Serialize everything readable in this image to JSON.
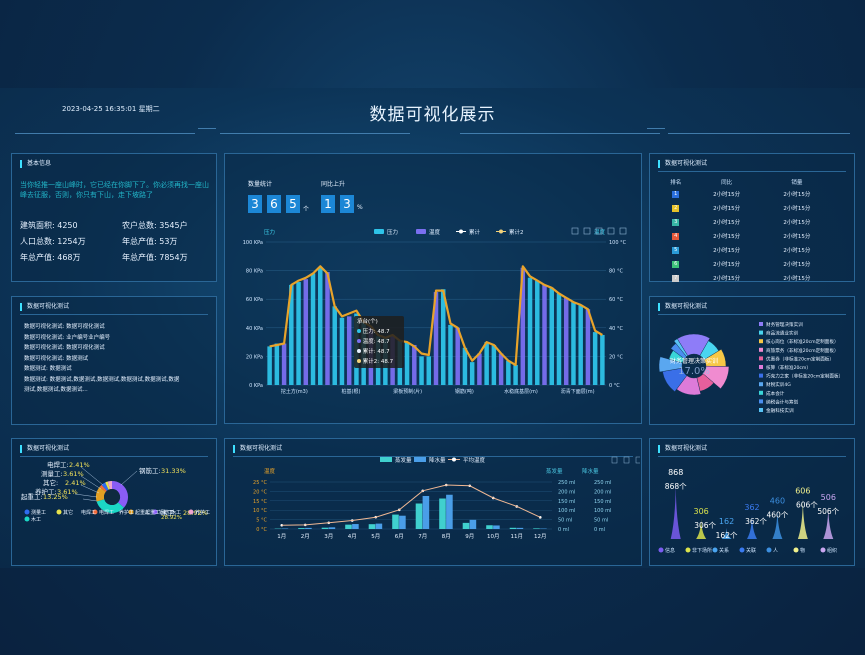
{
  "header": {
    "title": "数据可视化展示",
    "datetime": "2023-04-25  16:35:01  星期二"
  },
  "basic_info": {
    "title": "基本信息",
    "text": "当你轻推一座山峰时，它已经在你脚下了。你必须再找一座山峰去征服，否则，你只有下山，走下坡路了",
    "stats": [
      {
        "label": "建筑面积:",
        "value": "4250"
      },
      {
        "label": "农户总数:",
        "value": "3545户"
      },
      {
        "label": "人口总数:",
        "value": "1254万"
      },
      {
        "label": "年总产值:",
        "value": "53万"
      },
      {
        "label": "年总产值:",
        "value": "468万"
      },
      {
        "label": "年总产值:",
        "value": "7854万"
      }
    ]
  },
  "text_panel": {
    "title": "数据可视化测试",
    "lines": [
      "数据可视化测试: 数据可视化测试",
      "数据可视化测试: 业户编号业户编号",
      "数据可视化测试: 数据可视化测试",
      "数据可视化测试: 数据测试",
      "数据测试: 数据测试",
      "数据测试: 数据测试,数据测试,数据测试,数据测试,数据测试,数据",
      "测试,数据测试,数据测试..."
    ]
  },
  "left_bottom_panel": {
    "title": "数据可视化测试"
  },
  "center_top": {
    "count_label": "数量统计",
    "count_digits": [
      "3",
      "6",
      "5"
    ],
    "count_unit": "个",
    "rise_label": "同比上升",
    "rise_digits": [
      "1",
      "3"
    ],
    "rise_unit": "%"
  },
  "tooltip": {
    "title": "承台(个)",
    "rows": [
      "压力: 48.7",
      "温度: 48.7",
      "累计: 48.7",
      "累计2: 48.7"
    ]
  },
  "ranking": {
    "title": "数据可视化测试",
    "headers": [
      "排名",
      "同比",
      "销量"
    ],
    "rows": [
      {
        "rank": "1",
        "a": "2小时15分",
        "b": "2小时15分"
      },
      {
        "rank": "2",
        "a": "2小时15分",
        "b": "2小时15分"
      },
      {
        "rank": "3",
        "a": "2小时15分",
        "b": "2小时15分"
      },
      {
        "rank": "4",
        "a": "2小时15分",
        "b": "2小时15分"
      },
      {
        "rank": "5",
        "a": "2小时15分",
        "b": "2小时15分"
      },
      {
        "rank": "6",
        "a": "2小时15分",
        "b": "2小时15分"
      },
      {
        "rank": "7",
        "a": "2小时15分",
        "b": "2小时15分"
      }
    ],
    "rank_colors": [
      "#2a6fdc",
      "#e6c229",
      "#37b7a6",
      "#e45a3b",
      "#2a9bd8",
      "#3cc27a",
      "#cccccc"
    ]
  },
  "pie_panel": {
    "title": "数据可视化测试",
    "center_label": "财务管理决策实训",
    "center_value": "17.0%"
  },
  "monthly_panel": {
    "title": "数据可视化测试"
  },
  "pictorial_panel": {
    "title": "数据可视化测试"
  },
  "chart_data": [
    {
      "type": "bar",
      "id": "pressure",
      "legend": [
        "压力",
        "温度",
        "累计",
        "累计2"
      ],
      "colors": {
        "bar1": "#2ec3e8",
        "bar2": "#7a6ff0",
        "line": "#e8a32a"
      },
      "ylabel_left": "压力",
      "ylabel_right": "温度",
      "y_left_ticks": [
        "0 KPa",
        "20 KPa",
        "40 KPa",
        "60 KPa",
        "80 KPa",
        "100 KPa"
      ],
      "y_right_ticks": [
        "0 °C",
        "20 °C",
        "40 °C",
        "60 °C",
        "80 °C",
        "100 °C"
      ],
      "ylim": [
        0,
        100
      ],
      "x_labels": [
        "挖土方(m3)",
        "桩基(根)",
        "梁板预制(片)",
        "钢筋(吨)",
        "水稳底基层(m)",
        "沥青下面层(m)"
      ],
      "values": [
        27,
        29,
        29,
        70,
        72,
        74,
        78,
        82,
        79,
        55,
        47,
        48,
        50,
        44,
        41,
        34,
        33,
        35,
        31,
        30,
        28,
        20,
        20,
        65,
        67,
        42,
        40,
        26,
        16,
        22,
        30,
        28,
        22,
        17,
        14,
        82,
        75,
        73,
        70,
        68,
        64,
        61,
        58,
        56,
        53,
        37,
        35
      ],
      "line": [
        27,
        28,
        29,
        70,
        73,
        75,
        78,
        83,
        78,
        55,
        48,
        50,
        52,
        44,
        41,
        35,
        33,
        35,
        31,
        30,
        27,
        22,
        21,
        66,
        66,
        43,
        40,
        26,
        17,
        22,
        30,
        28,
        22,
        17,
        14,
        83,
        76,
        73,
        70,
        68,
        64,
        61,
        58,
        56,
        53,
        38,
        35
      ]
    },
    {
      "type": "donut",
      "id": "workers",
      "series": [
        {
          "name": "钢筋工",
          "value": 31.33,
          "color": "#8a5cf6"
        },
        {
          "name": "木工",
          "value": 28.92,
          "color": "#1bd8c6"
        },
        {
          "name": "起重工",
          "value": 13.25,
          "color": "#e2a023"
        },
        {
          "name": "电焊工",
          "value": 2.41,
          "color": "#f46b3a"
        },
        {
          "name": "测量工",
          "value": 3.61,
          "color": "#2f6cf0"
        },
        {
          "name": "其它",
          "value": 2.41,
          "color": "#e8e34c"
        },
        {
          "name": "养护工",
          "value": 3.61,
          "color": "#f0a5d0"
        }
      ],
      "callouts": [
        {
          "name": "电焊工:",
          "value": "2.41%"
        },
        {
          "name": "测量工:",
          "value": "3.61%"
        },
        {
          "name": "其它:",
          "value": "2.41%"
        },
        {
          "name": "养护工:",
          "value": "3.61%"
        },
        {
          "name": "起重工:",
          "value": "13.25%"
        },
        {
          "name": "钢筋工:",
          "value": "31.33%"
        },
        {
          "name": "木工:",
          "value": "28.92%"
        }
      ],
      "legend": [
        "测量工",
        "其它",
        "电焊工",
        "起重工",
        "钢筋工",
        "养护工",
        "木工"
      ],
      "overlap_labels": [
        "电焊工",
        "养护工",
        "起重工",
        "木工"
      ]
    },
    {
      "type": "pie",
      "id": "courses",
      "series": [
        {
          "name": "财务管理决策实训",
          "value": 17,
          "color": "#8e7cf8"
        },
        {
          "name": "商品流通业实训",
          "value": 8,
          "color": "#49d5f0"
        },
        {
          "name": "核心岗位（非标准20cm定制面板）",
          "value": 9,
          "color": "#f7c846"
        },
        {
          "name": "商旅票务（非标准20cm定制面板）",
          "value": 11,
          "color": "#f08bd0"
        },
        {
          "name": "优惠券（非标准20cm定制面板）",
          "value": 10,
          "color": "#e75f9c"
        },
        {
          "name": "核算（非标准20cm）",
          "value": 14,
          "color": "#dd7bd9"
        },
        {
          "name": "巧克力之家（非标准20cm定制面板）",
          "value": 12,
          "color": "#3a6fe8"
        },
        {
          "name": "财税实训4G",
          "value": 7,
          "color": "#5aa7f0"
        },
        {
          "name": "成本会计",
          "value": 6,
          "color": "#3ad6d8"
        },
        {
          "name": "纳税会计与筹划",
          "value": 4,
          "color": "#4a8ef0"
        },
        {
          "name": "金融科技实训",
          "value": 2,
          "color": "#58c3f5"
        }
      ],
      "legend": [
        "财务管理决策实训",
        "商品流通业实训",
        "核心岗位（非标准20cm定制面板）",
        "商旅票务（非标准20cm定制面板）",
        "优惠券（非标准20cm定制面板）",
        "核算（非标准20cm）",
        "巧克力之家（非标准20cm定制面板）",
        "财税实训4G",
        "成本会计",
        "纳税会计与筹划",
        "金融科技实训"
      ]
    },
    {
      "type": "bar",
      "id": "monthly",
      "legend": [
        "蒸发量",
        "降水量",
        "平均温度"
      ],
      "categories": [
        "1月",
        "2月",
        "3月",
        "4月",
        "5月",
        "6月",
        "7月",
        "8月",
        "9月",
        "10月",
        "11月",
        "12月"
      ],
      "series": [
        {
          "name": "蒸发量",
          "values": [
            2,
            4.9,
            7,
            23.2,
            25.6,
            76.7,
            135.6,
            162.2,
            32.6,
            20,
            6.4,
            3.3
          ],
          "color": "#40d0ce"
        },
        {
          "name": "降水量",
          "values": [
            2.6,
            5.9,
            9,
            26.4,
            28.7,
            70.7,
            175.6,
            182.2,
            48.7,
            18.8,
            6,
            2.3
          ],
          "color": "#4a9ee8"
        }
      ],
      "line": {
        "name": "平均温度",
        "values": [
          2,
          2.2,
          3.3,
          4.5,
          6.3,
          10.2,
          20.3,
          23.4,
          23,
          16.5,
          12,
          6.2
        ],
        "color": "#f0b894"
      },
      "ylabel_left": "温度",
      "ylabel_mid": "蒸发量",
      "ylabel_right": "降水量",
      "y_left_ticks": [
        "0 °C",
        "5 °C",
        "10 °C",
        "15 °C",
        "20 °C",
        "25 °C"
      ],
      "y_mid_ticks": [
        "0 ml",
        "50 ml",
        "100 ml",
        "150 ml",
        "200 ml",
        "250 ml"
      ],
      "y_right_ticks": [
        "0 ml",
        "50 ml",
        "100 ml",
        "150 ml",
        "200 ml",
        "250 ml"
      ],
      "ylim_left": [
        0,
        25
      ],
      "ylim_right": [
        0,
        250
      ]
    },
    {
      "type": "pictorial",
      "id": "places",
      "categories": [
        "信息",
        "非下场所",
        "关系",
        "关联",
        "人",
        "物",
        "组织"
      ],
      "values": [
        868,
        306,
        162,
        362,
        460,
        606,
        506
      ],
      "labels": [
        "868个",
        "306个",
        "162个",
        "362个",
        "460个",
        "606个",
        "506个"
      ],
      "colors": [
        "#7a5cf0",
        "#dbe34c",
        "#4aa5f0",
        "#3a7bf0",
        "#3c8fe0",
        "#f0f08c",
        "#c9a6f0"
      ]
    }
  ]
}
